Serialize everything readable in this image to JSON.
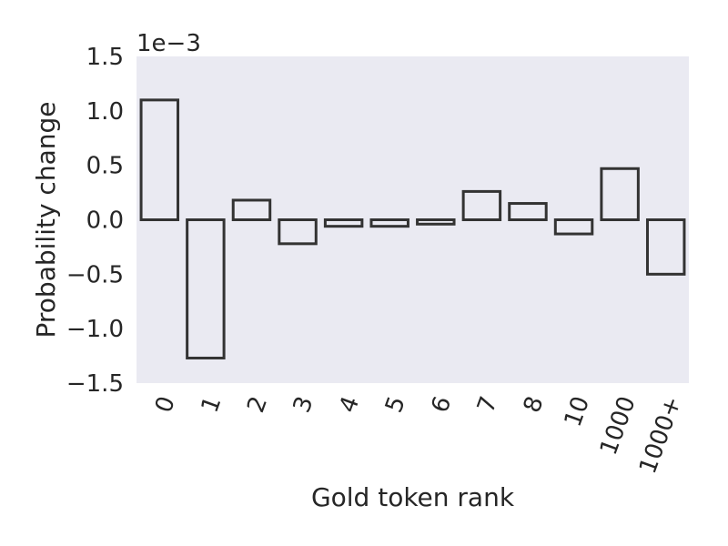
{
  "chart_data": {
    "type": "bar",
    "categories": [
      "0",
      "1",
      "2",
      "3",
      "4",
      "5",
      "6",
      "7",
      "8",
      "10",
      "1000",
      "1000+"
    ],
    "values": [
      0.0011,
      -0.00127,
      0.00018,
      -0.00022,
      -6e-05,
      -6e-05,
      -4e-05,
      0.00026,
      0.00015,
      -0.00013,
      0.00047,
      -0.0005
    ],
    "xlabel": "Gold token rank",
    "ylabel": "Probability change",
    "ylim": [
      -0.0015,
      0.0015
    ],
    "yticks": [
      -1.5,
      -1.0,
      -0.5,
      0.0,
      0.5,
      1.0,
      1.5
    ],
    "ytick_labels": [
      "−1.5",
      "−1.0",
      "−0.5",
      "0.0",
      "0.5",
      "1.0",
      "1.5"
    ],
    "y_offset_label": "1e−3",
    "grid": false,
    "colors": {
      "background": "#eaeaf2",
      "bar_edge": "#333333",
      "bar_fill": "none"
    }
  }
}
